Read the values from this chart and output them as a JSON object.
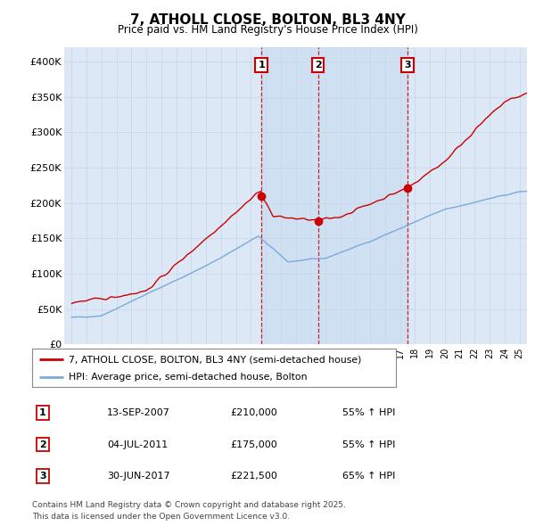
{
  "title": "7, ATHOLL CLOSE, BOLTON, BL3 4NY",
  "subtitle": "Price paid vs. HM Land Registry's House Price Index (HPI)",
  "hpi_label": "HPI: Average price, semi-detached house, Bolton",
  "price_label": "7, ATHOLL CLOSE, BOLTON, BL3 4NY (semi-detached house)",
  "price_color": "#cc0000",
  "hpi_color": "#7aaadd",
  "background_color": "#ffffff",
  "plot_bg_color": "#dce8f5",
  "ylim": [
    0,
    420000
  ],
  "yticks": [
    0,
    50000,
    100000,
    150000,
    200000,
    250000,
    300000,
    350000,
    400000
  ],
  "ytick_labels": [
    "£0",
    "£50K",
    "£100K",
    "£150K",
    "£200K",
    "£250K",
    "£300K",
    "£350K",
    "£400K"
  ],
  "transactions": [
    {
      "num": 1,
      "date_float": 2007.706,
      "price": 210000
    },
    {
      "num": 2,
      "date_float": 2011.502,
      "price": 175000
    },
    {
      "num": 3,
      "date_float": 2017.496,
      "price": 221500
    }
  ],
  "transaction_table": [
    [
      "1",
      "13-SEP-2007",
      "£210,000",
      "55% ↑ HPI"
    ],
    [
      "2",
      "04-JUL-2011",
      "£175,000",
      "55% ↑ HPI"
    ],
    [
      "3",
      "30-JUN-2017",
      "£221,500",
      "65% ↑ HPI"
    ]
  ],
  "footnote1": "Contains HM Land Registry data © Crown copyright and database right 2025.",
  "footnote2": "This data is licensed under the Open Government Licence v3.0.",
  "xlim_start": 1994.5,
  "xlim_end": 2025.5,
  "shade_color": "#dce8f5"
}
